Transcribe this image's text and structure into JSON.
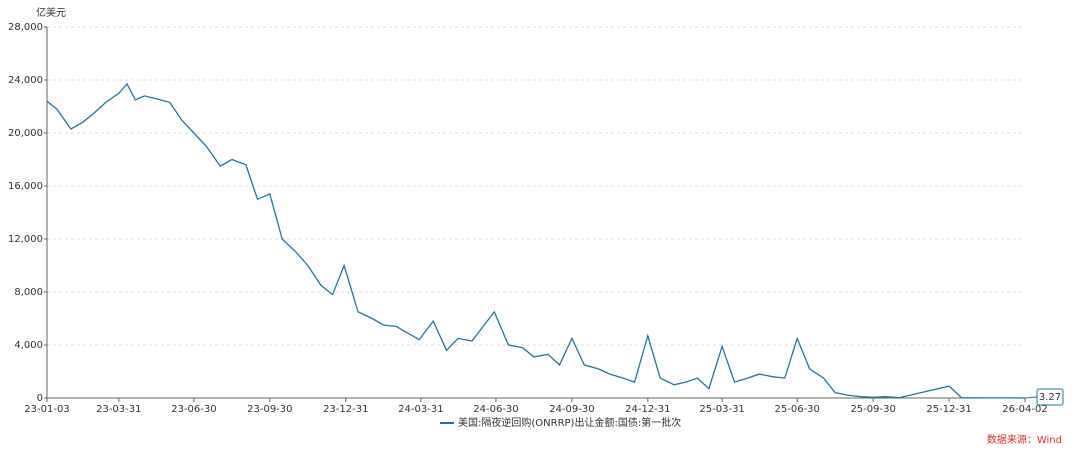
{
  "chart_data": {
    "type": "line",
    "y_unit": "亿美元",
    "legend": "美国:隔夜逆回购(ONRRP)出让金额:国债:第一批次",
    "source": "数据来源：Wind",
    "color": "#1f78a0",
    "grid": true,
    "xlim": [
      "23-01-03",
      "26-04-02"
    ],
    "xticks": [
      "23-01-03",
      "23-03-31",
      "23-06-30",
      "23-09-30",
      "23-12-31",
      "24-03-31",
      "24-06-30",
      "24-09-30",
      "24-12-31",
      "25-03-31",
      "25-06-30",
      "25-09-30",
      "25-12-31",
      "26-04-02"
    ],
    "ylim": [
      0,
      28000
    ],
    "yticks": [
      0,
      {
        "value": 4000,
        "label": "4,000"
      },
      {
        "value": 8000,
        "label": "8,000"
      },
      {
        "value": 12000,
        "label": "12,000"
      },
      {
        "value": 16000,
        "label": "16,000"
      },
      {
        "value": 20000,
        "label": "20,000"
      },
      {
        "value": 24000,
        "label": "24,000"
      },
      {
        "value": 28000,
        "label": "28,000"
      }
    ],
    "x": [
      "23-01-03",
      "23-01-15",
      "23-02-01",
      "23-02-15",
      "23-03-01",
      "23-03-15",
      "23-03-31",
      "23-04-10",
      "23-04-20",
      "23-05-01",
      "23-05-15",
      "23-06-01",
      "23-06-15",
      "23-06-30",
      "23-07-15",
      "23-08-01",
      "23-08-15",
      "23-09-01",
      "23-09-15",
      "23-09-30",
      "23-10-15",
      "23-11-01",
      "23-11-15",
      "23-12-01",
      "23-12-15",
      "23-12-29",
      "24-01-15",
      "24-02-01",
      "24-02-15",
      "24-03-01",
      "24-03-29",
      "24-04-15",
      "24-05-01",
      "24-05-15",
      "24-06-01",
      "24-06-28",
      "24-07-15",
      "24-08-01",
      "24-08-15",
      "24-09-01",
      "24-09-15",
      "24-09-30",
      "24-10-15",
      "24-11-01",
      "24-11-15",
      "24-12-01",
      "24-12-15",
      "24-12-31",
      "25-01-15",
      "25-02-01",
      "25-02-15",
      "25-03-01",
      "25-03-15",
      "25-03-31",
      "25-04-15",
      "25-05-01",
      "25-05-15",
      "25-06-01",
      "25-06-15",
      "25-06-30",
      "25-07-15",
      "25-08-01",
      "25-08-15",
      "25-09-01",
      "25-09-15",
      "25-09-30",
      "25-10-15",
      "25-11-01",
      "25-12-31",
      "26-01-15",
      "26-02-15",
      "26-03-15",
      "26-04-02"
    ],
    "values": [
      22400,
      21800,
      20300,
      20800,
      21500,
      22300,
      23000,
      23700,
      22500,
      22800,
      22600,
      22300,
      21000,
      20000,
      19000,
      17500,
      18000,
      17600,
      15000,
      15400,
      12000,
      11000,
      10000,
      8500,
      7800,
      10000,
      6500,
      6000,
      5500,
      5400,
      4400,
      5800,
      3600,
      4500,
      4300,
      6500,
      4000,
      3800,
      3100,
      3300,
      2500,
      4500,
      2500,
      2200,
      1800,
      1500,
      1200,
      4700,
      1500,
      1000,
      1200,
      1500,
      700,
      3900,
      1200,
      1500,
      1800,
      1600,
      1500,
      4500,
      2200,
      1500,
      400,
      200,
      100,
      50,
      100,
      30,
      900,
      20,
      10,
      5,
      3.27
    ]
  }
}
